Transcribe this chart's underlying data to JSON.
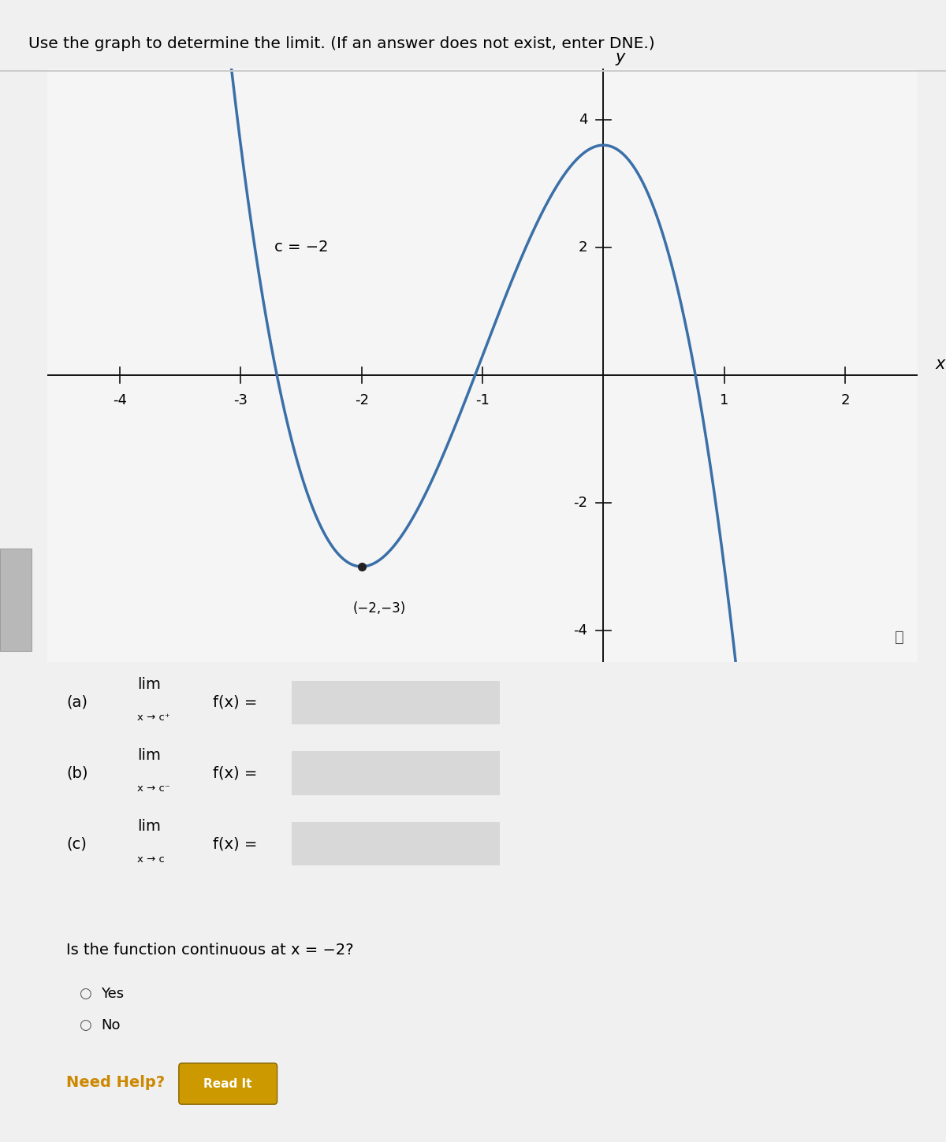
{
  "title": "Use the graph to determine the limit. (If an answer does not exist, enter DNE.)",
  "c_label": "c = −2",
  "dot_point": [
    -2,
    -3
  ],
  "dot_label": "(−2,−3)",
  "graph_xlim": [
    -4.6,
    2.6
  ],
  "graph_ylim": [
    -4.5,
    4.8
  ],
  "xticks": [
    -4,
    -3,
    -2,
    -1,
    1,
    2
  ],
  "yticks": [
    -4,
    -2,
    2,
    4
  ],
  "xlabel": "x",
  "ylabel": "y",
  "curve_color": "#3a6fa8",
  "curve_linewidth": 2.5,
  "poly_A": -1.65,
  "poly_C": 3.6,
  "bg_color": "#f0f0f0",
  "graph_bg": "#f5f5f5",
  "axes_color": "#111111",
  "parts": [
    {
      "label": "(a)",
      "sub": "x → c⁺"
    },
    {
      "label": "(b)",
      "sub": "x → c⁻"
    },
    {
      "label": "(c)",
      "sub": "x → c"
    }
  ],
  "continuous_q": "Is the function continuous at x = −2?",
  "yes_lbl": "Yes",
  "no_lbl": "No",
  "need_help": "Need Help?",
  "read_it": "Read It",
  "nav": ">",
  "info": "ⓘ"
}
